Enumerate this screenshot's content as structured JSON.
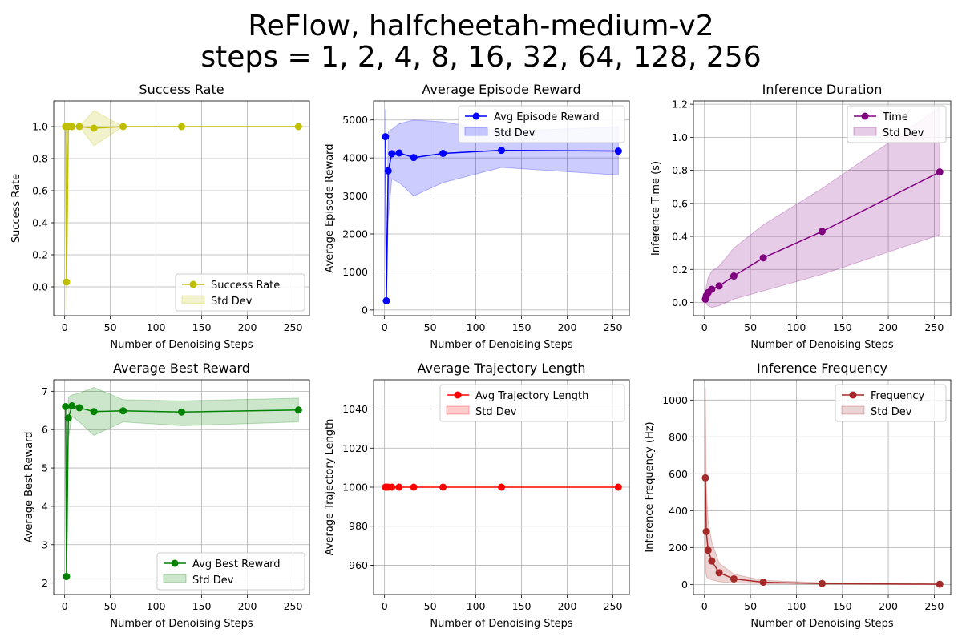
{
  "figure": {
    "title_line1": "ReFlow, halfcheetah-medium-v2",
    "title_line2": "steps = 1, 2, 4, 8, 16, 32, 64, 128, 256"
  },
  "chart_data": [
    {
      "type": "line",
      "title": "Success Rate",
      "xlabel": "Number of Denoising Steps",
      "ylabel": "Success Rate",
      "xlim": [
        -12,
        268
      ],
      "ylim": [
        -0.18,
        1.16
      ],
      "xticks": [
        0,
        50,
        100,
        150,
        200,
        250
      ],
      "xtick_labels": [
        "0",
        "50",
        "100",
        "150",
        "200",
        "250"
      ],
      "yticks": [
        0.0,
        0.2,
        0.4,
        0.6,
        0.8,
        1.0
      ],
      "ytick_labels": [
        "0.0",
        "0.2",
        "0.4",
        "0.6",
        "0.8",
        "1.0"
      ],
      "grid": true,
      "legend_position": "lower-right",
      "color": "#bfbf00",
      "band_color": "#bfbf00",
      "x": [
        1,
        2,
        4,
        8,
        16,
        32,
        64,
        128,
        256
      ],
      "series": [
        {
          "name": "Success Rate",
          "values": [
            1.0,
            0.03,
            1.0,
            1.0,
            1.0,
            0.99,
            1.0,
            1.0,
            1.0
          ]
        }
      ],
      "band": {
        "name": "Std Dev",
        "lower": [
          1.0,
          -0.14,
          1.0,
          1.0,
          1.0,
          0.88,
          1.0,
          1.0,
          1.0
        ],
        "upper": [
          1.0,
          0.2,
          1.0,
          1.0,
          1.0,
          1.1,
          1.0,
          1.0,
          1.0
        ]
      }
    },
    {
      "type": "line",
      "title": "Average Episode Reward",
      "xlabel": "Number of Denoising Steps",
      "ylabel": "Average Episode Reward",
      "xlim": [
        -12,
        268
      ],
      "ylim": [
        -150,
        5500
      ],
      "xticks": [
        0,
        50,
        100,
        150,
        200,
        250
      ],
      "xtick_labels": [
        "0",
        "50",
        "100",
        "150",
        "200",
        "250"
      ],
      "yticks": [
        0,
        1000,
        2000,
        3000,
        4000,
        5000
      ],
      "ytick_labels": [
        "0",
        "1000",
        "2000",
        "3000",
        "4000",
        "5000"
      ],
      "grid": true,
      "legend_position": "top-right",
      "color": "#0000ff",
      "band_color": "#0000ff",
      "x": [
        1,
        2,
        4,
        8,
        16,
        32,
        64,
        128,
        256
      ],
      "series": [
        {
          "name": "Avg Episode Reward",
          "values": [
            4560,
            240,
            3660,
            4110,
            4130,
            4010,
            4120,
            4200,
            4180
          ]
        }
      ],
      "band": {
        "name": "Std Dev",
        "lower": [
          3850,
          220,
          2400,
          3450,
          3350,
          3000,
          3350,
          3750,
          3550
        ],
        "upper": [
          5280,
          260,
          4700,
          4750,
          4900,
          5000,
          4950,
          4700,
          4820
        ]
      }
    },
    {
      "type": "line",
      "title": "Inference Duration",
      "xlabel": "Number of Denoising Steps",
      "ylabel": "Inference Time (s)",
      "xlim": [
        -12,
        268
      ],
      "ylim": [
        -0.08,
        1.22
      ],
      "xticks": [
        0,
        50,
        100,
        150,
        200,
        250
      ],
      "xtick_labels": [
        "0",
        "50",
        "100",
        "150",
        "200",
        "250"
      ],
      "yticks": [
        0.0,
        0.2,
        0.4,
        0.6,
        0.8,
        1.0,
        1.2
      ],
      "ytick_labels": [
        "0.0",
        "0.2",
        "0.4",
        "0.6",
        "0.8",
        "1.0",
        "1.2"
      ],
      "grid": true,
      "legend_position": "top-right",
      "color": "#800080",
      "band_color": "#800080",
      "x": [
        1,
        2,
        4,
        8,
        16,
        32,
        64,
        128,
        256
      ],
      "series": [
        {
          "name": "Time",
          "values": [
            0.02,
            0.04,
            0.06,
            0.08,
            0.1,
            0.16,
            0.27,
            0.43,
            0.79
          ]
        }
      ],
      "band": {
        "name": "Std Dev",
        "lower": [
          0.0,
          -0.01,
          -0.02,
          -0.03,
          -0.02,
          0.02,
          0.07,
          0.17,
          0.41
        ],
        "upper": [
          0.04,
          0.1,
          0.15,
          0.19,
          0.22,
          0.33,
          0.47,
          0.69,
          1.18
        ]
      }
    },
    {
      "type": "line",
      "title": "Average Best Reward",
      "xlabel": "Number of Denoising Steps",
      "ylabel": "Average Best Reward",
      "xlim": [
        -12,
        268
      ],
      "ylim": [
        1.7,
        7.3
      ],
      "xticks": [
        0,
        50,
        100,
        150,
        200,
        250
      ],
      "xtick_labels": [
        "0",
        "50",
        "100",
        "150",
        "200",
        "250"
      ],
      "yticks": [
        2,
        3,
        4,
        5,
        6,
        7
      ],
      "ytick_labels": [
        "2",
        "3",
        "4",
        "5",
        "6",
        "7"
      ],
      "grid": true,
      "legend_position": "lower-right",
      "color": "#008000",
      "band_color": "#008000",
      "x": [
        1,
        2,
        4,
        8,
        16,
        32,
        64,
        128,
        256
      ],
      "series": [
        {
          "name": "Avg Best Reward",
          "values": [
            6.6,
            2.17,
            6.3,
            6.62,
            6.57,
            6.47,
            6.49,
            6.46,
            6.51
          ]
        }
      ],
      "band": {
        "name": "Std Dev",
        "lower": [
          6.6,
          2.17,
          5.75,
          6.35,
          6.2,
          5.85,
          6.2,
          6.1,
          6.2
        ],
        "upper": [
          6.6,
          2.17,
          6.85,
          6.9,
          6.95,
          7.1,
          6.78,
          6.75,
          6.82
        ]
      }
    },
    {
      "type": "line",
      "title": "Average Trajectory Length",
      "xlabel": "Number of Denoising Steps",
      "ylabel": "Average Trajectory Length",
      "xlim": [
        -12,
        268
      ],
      "ylim": [
        945,
        1055
      ],
      "xticks": [
        0,
        50,
        100,
        150,
        200,
        250
      ],
      "xtick_labels": [
        "0",
        "50",
        "100",
        "150",
        "200",
        "250"
      ],
      "yticks": [
        960,
        980,
        1000,
        1020,
        1040
      ],
      "ytick_labels": [
        "960",
        "980",
        "1000",
        "1020",
        "1040"
      ],
      "grid": true,
      "legend_position": "top-right",
      "color": "#ff0000",
      "band_color": "#ff0000",
      "x": [
        1,
        2,
        4,
        8,
        16,
        32,
        64,
        128,
        256
      ],
      "series": [
        {
          "name": "Avg Trajectory Length",
          "values": [
            1000,
            1000,
            1000,
            1000,
            1000,
            1000,
            1000,
            1000,
            1000
          ]
        }
      ],
      "band": {
        "name": "Std Dev",
        "lower": [
          1000,
          1000,
          1000,
          1000,
          1000,
          1000,
          1000,
          1000,
          1000
        ],
        "upper": [
          1000,
          1000,
          1000,
          1000,
          1000,
          1000,
          1000,
          1000,
          1000
        ]
      }
    },
    {
      "type": "line",
      "title": "Inference Frequency",
      "xlabel": "Number of Denoising Steps",
      "ylabel": "Inference Frequency (Hz)",
      "xlim": [
        -12,
        268
      ],
      "ylim": [
        -55,
        1110
      ],
      "xticks": [
        0,
        50,
        100,
        150,
        200,
        250
      ],
      "xtick_labels": [
        "0",
        "50",
        "100",
        "150",
        "200",
        "250"
      ],
      "yticks": [
        0,
        200,
        400,
        600,
        800,
        1000
      ],
      "ytick_labels": [
        "0",
        "200",
        "400",
        "600",
        "800",
        "1000"
      ],
      "grid": true,
      "legend_position": "top-right",
      "color": "#a52a2a",
      "band_color": "#a52a2a",
      "x": [
        1,
        2,
        4,
        8,
        16,
        32,
        64,
        128,
        256
      ],
      "series": [
        {
          "name": "Frequency",
          "values": [
            578,
            287,
            185,
            127,
            63,
            30,
            12,
            5,
            1
          ]
        }
      ],
      "band": {
        "name": "Std Dev",
        "lower": [
          90,
          45,
          30,
          25,
          15,
          8,
          4,
          1,
          0
        ],
        "upper": [
          1065,
          530,
          340,
          230,
          115,
          55,
          22,
          9,
          3
        ]
      }
    }
  ]
}
